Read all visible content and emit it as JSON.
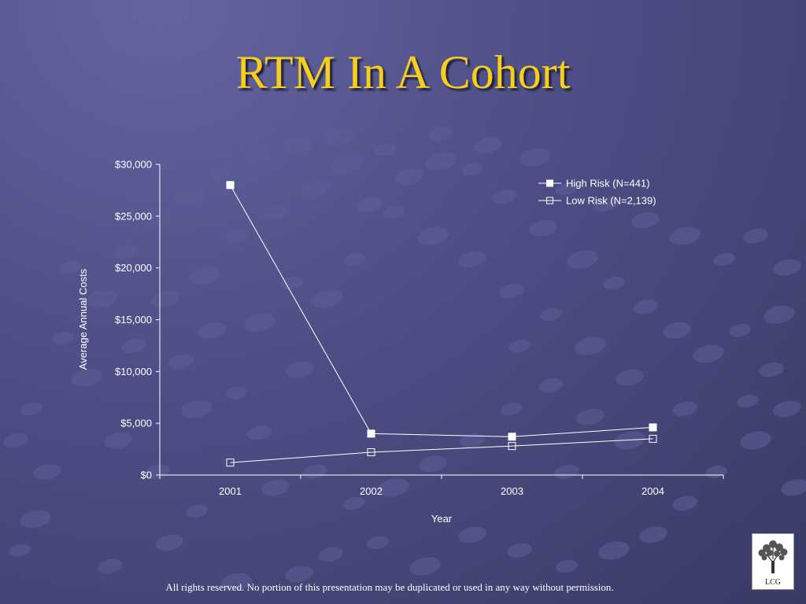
{
  "slide": {
    "title": "RTM In A Cohort",
    "footer": "All rights reserved. No portion of this presentation may be duplicated or used in any way without permission.",
    "logo_text": "LCG"
  },
  "colors": {
    "title": "#f6cf1e",
    "text": "#ffffff",
    "background": "#4e4e86"
  },
  "chart_data": {
    "type": "line",
    "title": "",
    "xlabel": "Year",
    "ylabel": "Average Annual Costs",
    "categories": [
      "2001",
      "2002",
      "2003",
      "2004"
    ],
    "yticks": [
      "$0",
      "$5,000",
      "$10,000",
      "$15,000",
      "$20,000",
      "$25,000",
      "$30,000"
    ],
    "ylim": [
      0,
      30000
    ],
    "grid": false,
    "legend_position": "top-right",
    "series": [
      {
        "name": "High Risk (N=441)",
        "marker": "filled-square",
        "values": [
          28000,
          4000,
          3700,
          4600
        ]
      },
      {
        "name": "Low Risk (N=2,139)",
        "marker": "open-square",
        "values": [
          1200,
          2200,
          2800,
          3500
        ]
      }
    ]
  }
}
